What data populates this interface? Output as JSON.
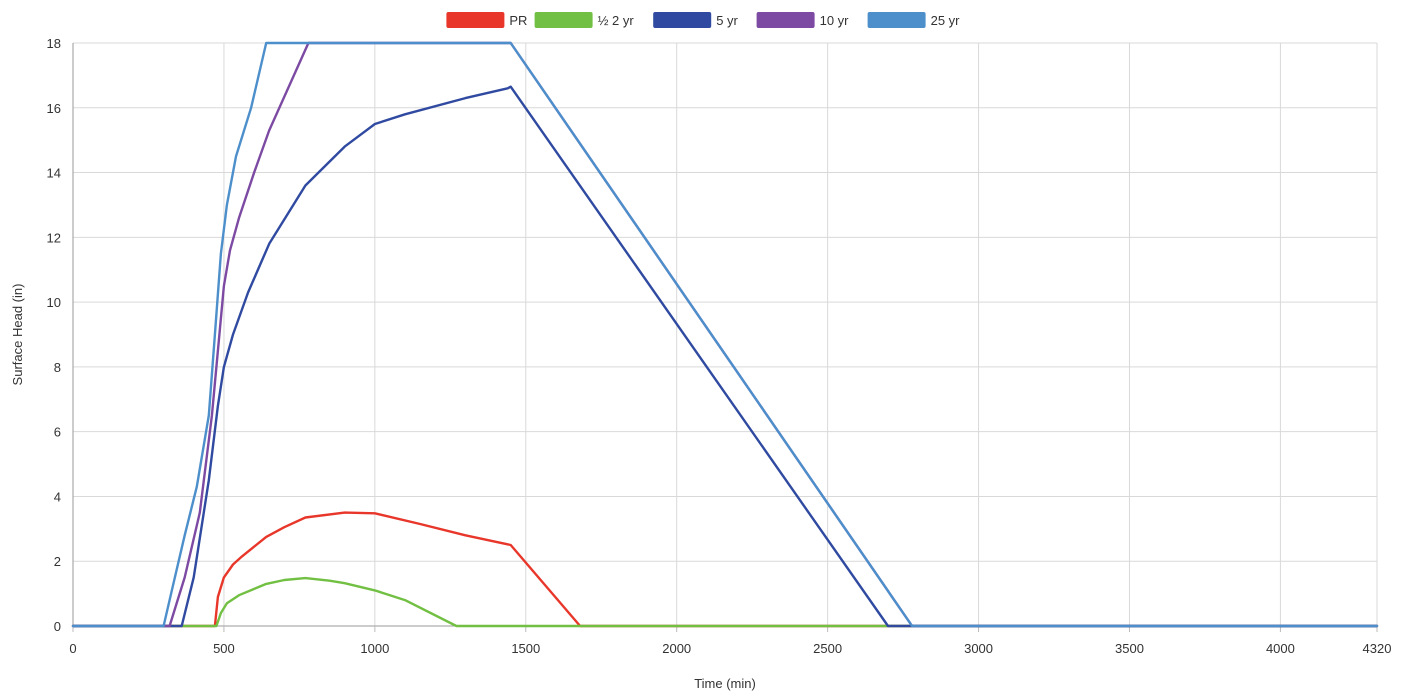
{
  "chart_data": {
    "type": "line",
    "title": "",
    "xlabel": "Time (min)",
    "ylabel": "Surface Head (in)",
    "xlim": [
      0,
      4320
    ],
    "ylim": [
      0,
      18
    ],
    "x_ticks": [
      0,
      500,
      1000,
      1500,
      2000,
      2500,
      3000,
      3500,
      4000,
      4320
    ],
    "y_ticks": [
      0,
      2,
      4,
      6,
      8,
      10,
      12,
      14,
      16,
      18
    ],
    "x_tick_labels": [
      "0",
      "500",
      "1000",
      "1500",
      "2000",
      "2500",
      "3000",
      "3500",
      "4000",
      "4320"
    ],
    "y_tick_labels": [
      "0",
      "2",
      "4",
      "6",
      "8",
      "10",
      "12",
      "14",
      "16",
      "18"
    ],
    "grid": true,
    "legend_position": "top-center",
    "series": [
      {
        "name": "PR",
        "color": "#e8372a",
        "points": [
          [
            0,
            0
          ],
          [
            470,
            0
          ],
          [
            480,
            0.9
          ],
          [
            500,
            1.5
          ],
          [
            530,
            1.9
          ],
          [
            560,
            2.15
          ],
          [
            640,
            2.75
          ],
          [
            700,
            3.05
          ],
          [
            770,
            3.35
          ],
          [
            900,
            3.5
          ],
          [
            1000,
            3.48
          ],
          [
            1150,
            3.15
          ],
          [
            1300,
            2.8
          ],
          [
            1450,
            2.5
          ],
          [
            1680,
            0
          ],
          [
            4320,
            0
          ]
        ]
      },
      {
        "name": "½ 2 yr",
        "color": "#72c043",
        "points": [
          [
            0,
            0
          ],
          [
            475,
            0
          ],
          [
            490,
            0.4
          ],
          [
            510,
            0.7
          ],
          [
            550,
            0.95
          ],
          [
            640,
            1.3
          ],
          [
            700,
            1.42
          ],
          [
            770,
            1.48
          ],
          [
            850,
            1.4
          ],
          [
            900,
            1.32
          ],
          [
            1000,
            1.1
          ],
          [
            1100,
            0.8
          ],
          [
            1270,
            0
          ],
          [
            4320,
            0
          ]
        ]
      },
      {
        "name": "5 yr",
        "color": "#2f4aa0",
        "points": [
          [
            0,
            0
          ],
          [
            360,
            0
          ],
          [
            400,
            1.5
          ],
          [
            450,
            4.5
          ],
          [
            480,
            6.8
          ],
          [
            500,
            8.0
          ],
          [
            530,
            9.0
          ],
          [
            580,
            10.3
          ],
          [
            650,
            11.8
          ],
          [
            770,
            13.6
          ],
          [
            900,
            14.8
          ],
          [
            1000,
            15.5
          ],
          [
            1100,
            15.8
          ],
          [
            1300,
            16.3
          ],
          [
            1440,
            16.6
          ],
          [
            1450,
            16.65
          ],
          [
            2700,
            0
          ],
          [
            4320,
            0
          ]
        ]
      },
      {
        "name": "10 yr",
        "color": "#7d4aa3",
        "points": [
          [
            0,
            0
          ],
          [
            320,
            0
          ],
          [
            370,
            1.5
          ],
          [
            420,
            3.5
          ],
          [
            460,
            6.5
          ],
          [
            480,
            8.5
          ],
          [
            500,
            10.5
          ],
          [
            520,
            11.6
          ],
          [
            550,
            12.6
          ],
          [
            600,
            14.0
          ],
          [
            650,
            15.3
          ],
          [
            780,
            18
          ],
          [
            1450,
            18
          ],
          [
            2780,
            0
          ],
          [
            4320,
            0
          ]
        ]
      },
      {
        "name": "25 yr",
        "color": "#4d8fcb",
        "points": [
          [
            0,
            0
          ],
          [
            300,
            0
          ],
          [
            330,
            1.2
          ],
          [
            370,
            2.8
          ],
          [
            410,
            4.3
          ],
          [
            450,
            6.5
          ],
          [
            470,
            9.0
          ],
          [
            490,
            11.5
          ],
          [
            510,
            13.0
          ],
          [
            540,
            14.5
          ],
          [
            590,
            16.0
          ],
          [
            640,
            18
          ],
          [
            1450,
            18
          ],
          [
            2780,
            0
          ],
          [
            4320,
            0
          ]
        ]
      }
    ]
  }
}
